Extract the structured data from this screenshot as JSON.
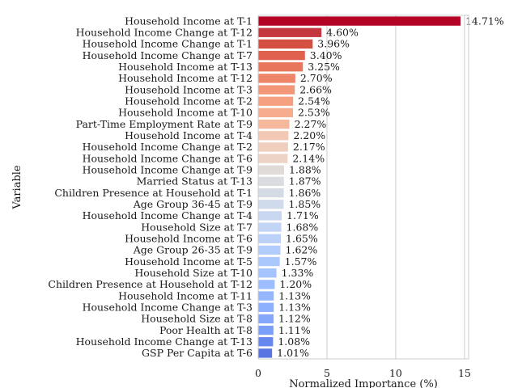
{
  "chart_data": {
    "type": "bar",
    "orientation": "horizontal",
    "xlabel": "Normalized Importance (%)",
    "ylabel": "Variable",
    "xlim": [
      0,
      15.3
    ],
    "xticks": [
      0,
      5,
      10,
      15
    ],
    "grid": "vertical",
    "categories": [
      "Household Income at T-1",
      "Household Income Change at T-12",
      "Household Income Change at T-1",
      "Household Income Change at T-7",
      "Household Income at T-13",
      "Household Income at T-12",
      "Household Income at T-3",
      "Household Income at T-2",
      "Household Income at T-10",
      "Part-Time Employment Rate at T-9",
      "Household Income at T-4",
      "Household Income Change at T-2",
      "Household Income Change at T-6",
      "Household Income Change at T-9",
      "Married Status at T-13",
      "Children Presence at Household at T-1",
      "Age Group 36-45 at T-9",
      "Household Income Change at T-4",
      "Household Size at T-7",
      "Household Income at T-6",
      "Age Group 26-35 at T-9",
      "Household Income at T-5",
      "Household Size at T-10",
      "Children Presence at Household at T-12",
      "Household Income at T-11",
      "Household Income Change at T-3",
      "Household Size at T-8",
      "Poor Health at T-8",
      "Household Income Change at T-13",
      "GSP Per Capita at T-6"
    ],
    "values": [
      14.71,
      4.6,
      3.96,
      3.4,
      3.25,
      2.7,
      2.66,
      2.54,
      2.53,
      2.27,
      2.2,
      2.17,
      2.14,
      1.88,
      1.87,
      1.86,
      1.85,
      1.71,
      1.68,
      1.65,
      1.62,
      1.57,
      1.33,
      1.2,
      1.13,
      1.13,
      1.12,
      1.11,
      1.08,
      1.01
    ],
    "value_labels": [
      "14.71%",
      "4.60%",
      "3.96%",
      "3.40%",
      "3.25%",
      "2.70%",
      "2.66%",
      "2.54%",
      "2.53%",
      "2.27%",
      "2.20%",
      "2.17%",
      "2.14%",
      "1.88%",
      "1.87%",
      "1.86%",
      "1.85%",
      "1.71%",
      "1.68%",
      "1.65%",
      "1.62%",
      "1.57%",
      "1.33%",
      "1.20%",
      "1.13%",
      "1.13%",
      "1.12%",
      "1.11%",
      "1.08%",
      "1.01%"
    ],
    "colors": [
      "#b40426",
      "#c5373e",
      "#d44e41",
      "#de604d",
      "#e8765c",
      "#ee8468",
      "#f39577",
      "#f5a081",
      "#f7ac8e",
      "#f6b89c",
      "#f2c9b4",
      "#efcebd",
      "#ecd3c5",
      "#dfdbd9",
      "#dadce0",
      "#d5dbe5",
      "#cfdaea",
      "#c9d7f0",
      "#c3d5f4",
      "#bbd1f8",
      "#b2ccfb",
      "#abc8fd",
      "#a5c3fe",
      "#9dbdff",
      "#94b6ff",
      "#8caffe",
      "#84a7fc",
      "#7b9ff9",
      "#6687ed",
      "#5875e1"
    ]
  }
}
